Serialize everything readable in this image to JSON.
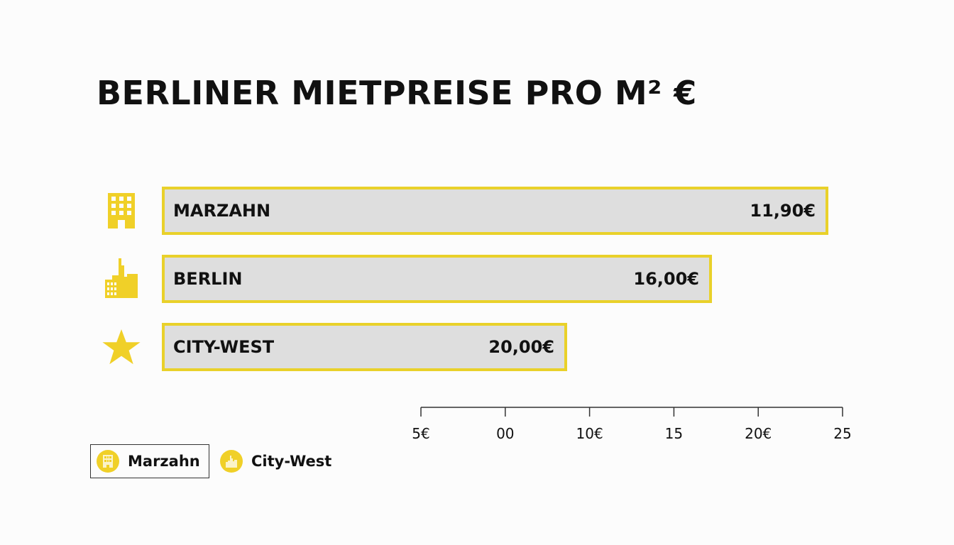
{
  "chart_data": {
    "type": "bar",
    "orientation": "horizontal",
    "title": "BERLINER MIETPREISE PRO M² €",
    "categories": [
      "MARZAHN",
      "BERLIN",
      "CITY-WEST"
    ],
    "values": [
      11.9,
      16.0,
      20.0
    ],
    "value_labels": [
      "11,90€",
      "16,00€",
      "20,00€"
    ],
    "icons": [
      "building-icon",
      "city-skyline-icon",
      "star-icon"
    ],
    "x_tick_labels": [
      "5€",
      "00",
      "10€",
      "15",
      "20€",
      "25"
    ],
    "legend": [
      {
        "label": "Marzahn",
        "icon": "building-icon",
        "boxed": true
      },
      {
        "label": "City-West",
        "icon": "city-skyline-icon",
        "boxed": false
      }
    ],
    "legend_position": "bottom-left",
    "grid": false,
    "colors": {
      "accent": "#e9d12a",
      "bar_fill": "#dedede",
      "icon": "#f0d028",
      "text": "#111111"
    }
  }
}
